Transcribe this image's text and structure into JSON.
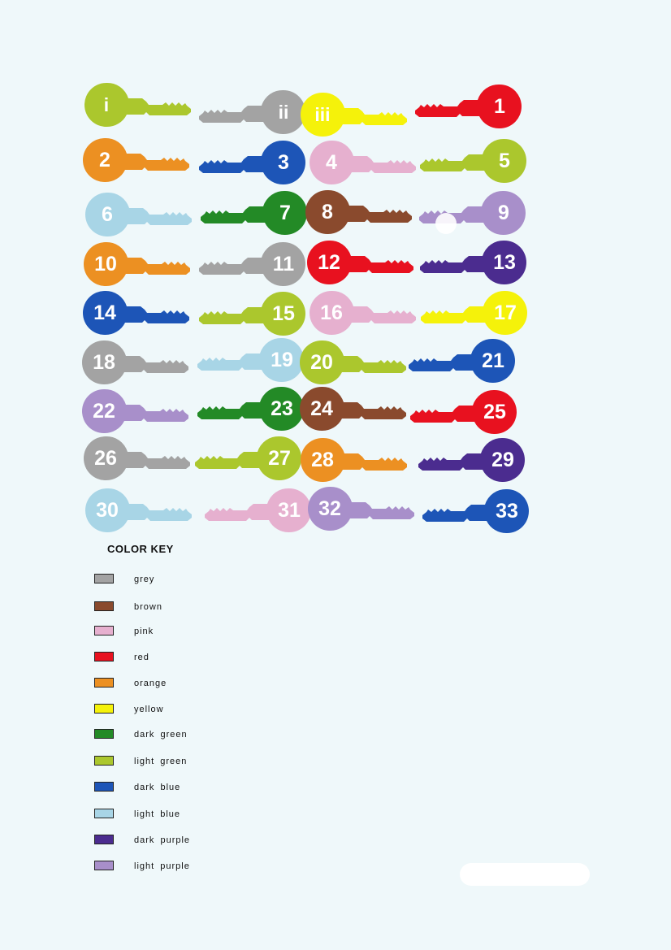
{
  "colors": {
    "grey": "#a3a3a3",
    "brown": "#8a4a2d",
    "pink": "#e6b0cf",
    "red": "#e8111f",
    "orange": "#ec9022",
    "yellow": "#f5f20a",
    "dark_green": "#238a26",
    "light_green": "#abc72d",
    "dark_blue": "#1d55b7",
    "light_blue": "#a8d5e6",
    "dark_purple": "#4b2c8f",
    "light_purple": "#a88fca"
  },
  "keys": [
    [
      {
        "label": "i",
        "color": "light_green",
        "dir": "right"
      },
      {
        "label": "ii",
        "color": "grey",
        "dir": "left"
      },
      {
        "label": "iii",
        "color": "yellow",
        "dir": "right"
      },
      {
        "label": "1",
        "color": "red",
        "dir": "left"
      }
    ],
    [
      {
        "label": "2",
        "color": "orange",
        "dir": "right"
      },
      {
        "label": "3",
        "color": "dark_blue",
        "dir": "left"
      },
      {
        "label": "4",
        "color": "pink",
        "dir": "right"
      },
      {
        "label": "5",
        "color": "light_green",
        "dir": "left"
      }
    ],
    [
      {
        "label": "6",
        "color": "light_blue",
        "dir": "right"
      },
      {
        "label": "7",
        "color": "dark_green",
        "dir": "left"
      },
      {
        "label": "8",
        "color": "brown",
        "dir": "right"
      },
      {
        "label": "9",
        "color": "light_purple",
        "dir": "left"
      }
    ],
    [
      {
        "label": "10",
        "color": "orange",
        "dir": "right"
      },
      {
        "label": "11",
        "color": "grey",
        "dir": "left"
      },
      {
        "label": "12",
        "color": "red",
        "dir": "right"
      },
      {
        "label": "13",
        "color": "dark_purple",
        "dir": "left"
      }
    ],
    [
      {
        "label": "14",
        "color": "dark_blue",
        "dir": "right"
      },
      {
        "label": "15",
        "color": "light_green",
        "dir": "left"
      },
      {
        "label": "16",
        "color": "pink",
        "dir": "right"
      },
      {
        "label": "17",
        "color": "yellow",
        "dir": "left"
      }
    ],
    [
      {
        "label": "18",
        "color": "grey",
        "dir": "right"
      },
      {
        "label": "19",
        "color": "light_blue",
        "dir": "left"
      },
      {
        "label": "20",
        "color": "light_green",
        "dir": "right"
      },
      {
        "label": "21",
        "color": "dark_blue",
        "dir": "left"
      }
    ],
    [
      {
        "label": "22",
        "color": "light_purple",
        "dir": "right"
      },
      {
        "label": "23",
        "color": "dark_green",
        "dir": "left"
      },
      {
        "label": "24",
        "color": "brown",
        "dir": "right"
      },
      {
        "label": "25",
        "color": "red",
        "dir": "left"
      }
    ],
    [
      {
        "label": "26",
        "color": "grey",
        "dir": "right"
      },
      {
        "label": "27",
        "color": "light_green",
        "dir": "left"
      },
      {
        "label": "28",
        "color": "orange",
        "dir": "right"
      },
      {
        "label": "29",
        "color": "dark_purple",
        "dir": "left"
      }
    ],
    [
      {
        "label": "30",
        "color": "light_blue",
        "dir": "right"
      },
      {
        "label": "31",
        "color": "pink",
        "dir": "left"
      },
      {
        "label": "32",
        "color": "light_purple",
        "dir": "right"
      },
      {
        "label": "33",
        "color": "dark_blue",
        "dir": "left"
      }
    ]
  ],
  "legend": {
    "title": "COLOR KEY",
    "items": [
      {
        "label": "grey",
        "color": "grey"
      },
      {
        "label": "brown",
        "color": "brown"
      },
      {
        "label": "pink",
        "color": "pink"
      },
      {
        "label": "red",
        "color": "red"
      },
      {
        "label": "orange",
        "color": "orange"
      },
      {
        "label": "yellow",
        "color": "yellow"
      },
      {
        "label": "dark green",
        "color": "dark_green"
      },
      {
        "label": "light green",
        "color": "light_green"
      },
      {
        "label": "dark blue",
        "color": "dark_blue"
      },
      {
        "label": "light blue",
        "color": "light_blue"
      },
      {
        "label": "dark purple",
        "color": "dark_purple"
      },
      {
        "label": "light purple",
        "color": "light_purple"
      }
    ]
  }
}
